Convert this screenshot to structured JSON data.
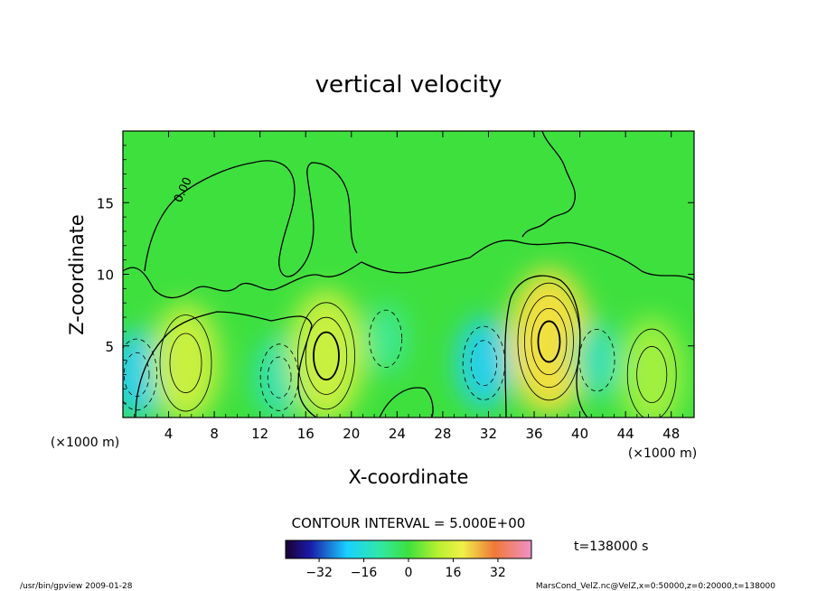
{
  "chart_data": {
    "type": "heatmap",
    "title": "vertical velocity",
    "xlabel": "X-coordinate",
    "ylabel": "Z-coordinate",
    "x_unit": "(×1000 m)",
    "y_unit": "(×1000 m)",
    "xlim": [
      0,
      50
    ],
    "ylim": [
      0,
      20
    ],
    "x_ticks": [
      4,
      8,
      12,
      16,
      20,
      24,
      28,
      32,
      36,
      40,
      44,
      48
    ],
    "y_ticks": [
      5,
      10,
      15
    ],
    "contour_interval_text": "CONTOUR INTERVAL = 5.000E+00",
    "contour_label": "0.00",
    "time_text": "t=138000 s",
    "colorbar": {
      "min": -44,
      "max": 44,
      "ticks": [
        -32,
        -16,
        0,
        16,
        32
      ]
    },
    "cells": [
      {
        "x": 1.2,
        "z": 3.0,
        "w": -12
      },
      {
        "x": 5.5,
        "z": 3.8,
        "w": 12
      },
      {
        "x": 13.7,
        "z": 2.8,
        "w": -10
      },
      {
        "x": 17.8,
        "z": 4.3,
        "w": 16
      },
      {
        "x": 23.0,
        "z": 5.5,
        "w": -6
      },
      {
        "x": 31.6,
        "z": 3.8,
        "w": -13
      },
      {
        "x": 37.3,
        "z": 5.3,
        "w": 20
      },
      {
        "x": 41.5,
        "z": 4.0,
        "w": -8
      },
      {
        "x": 46.3,
        "z": 3.0,
        "w": 10
      }
    ]
  },
  "footer": {
    "left": "/usr/bin/gpview   2009-01-28",
    "right": "MarsCond_VelZ.nc@VelZ,x=0:50000,z=0:20000,t=138000"
  }
}
